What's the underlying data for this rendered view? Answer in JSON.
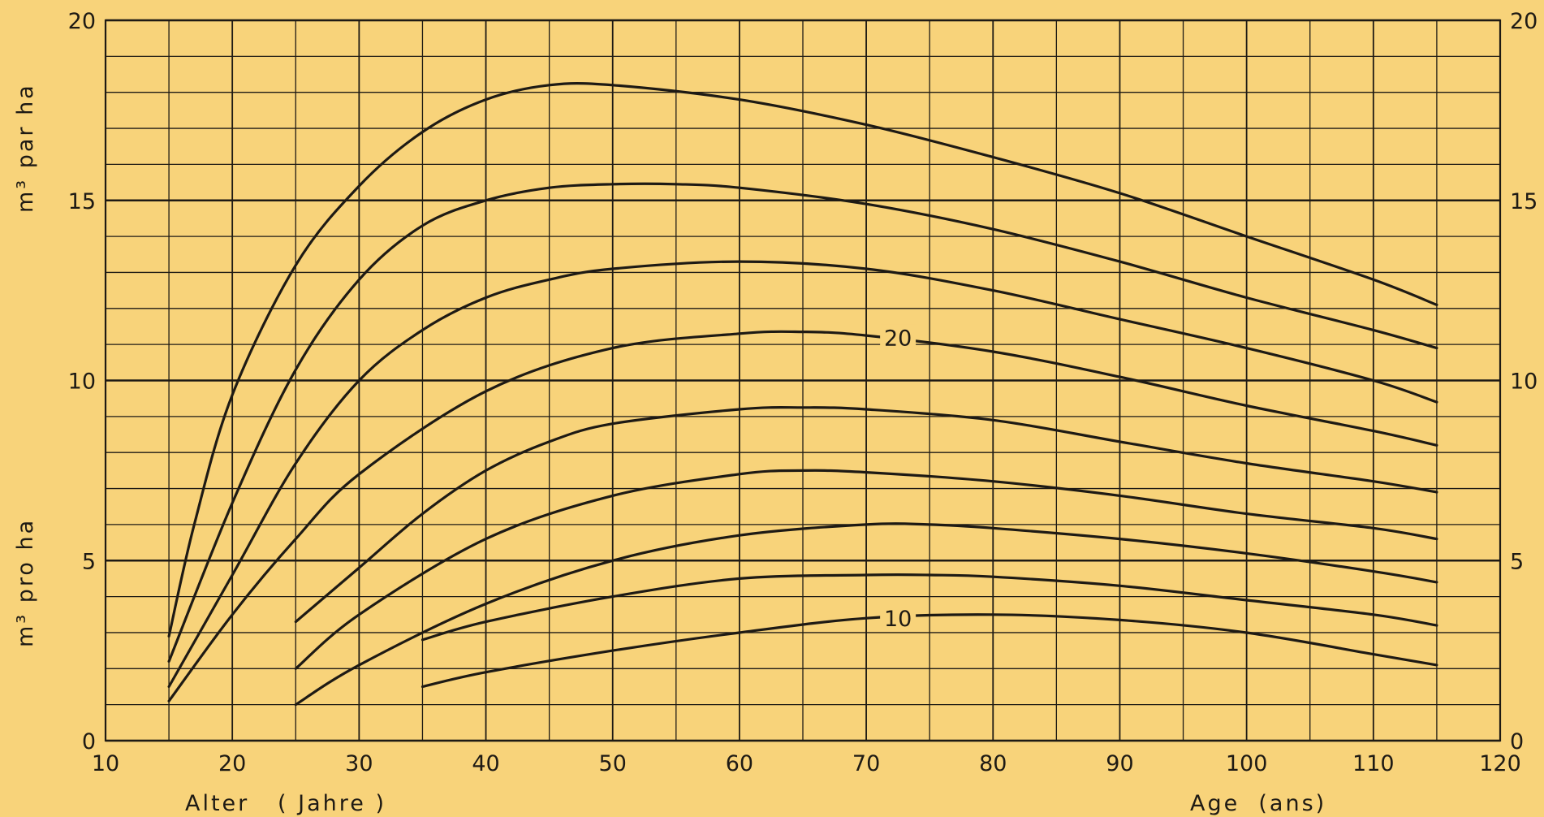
{
  "chart_data": {
    "type": "line",
    "title": "",
    "x_range": [
      10,
      120
    ],
    "y_range": [
      0,
      20
    ],
    "grid": true,
    "x_ticks": [
      10,
      20,
      30,
      40,
      50,
      60,
      70,
      80,
      90,
      100,
      110,
      120
    ],
    "y_ticks_left": [
      0,
      5,
      10,
      15,
      20
    ],
    "y_ticks_right": [
      0,
      5,
      10,
      15,
      20
    ],
    "xlabel_left": "Alter   ( Jahre )",
    "xlabel_right": "Age  (ans)",
    "ylabel_top": "m³ par ha",
    "ylabel_bottom": "m³ pro ha",
    "curve_labels": [
      {
        "text": "20",
        "x": 72.5,
        "y": 11.2
      },
      {
        "text": "10",
        "x": 72.5,
        "y": 3.4
      }
    ],
    "series": [
      {
        "x": [
          15,
          17,
          20,
          25,
          30,
          35,
          40,
          45,
          50,
          60,
          70,
          80,
          90,
          100,
          110,
          115
        ],
        "values": [
          2.9,
          6.0,
          9.6,
          13.2,
          15.4,
          16.9,
          17.8,
          18.2,
          18.2,
          17.8,
          17.1,
          16.2,
          15.2,
          14.0,
          12.8,
          12.1
        ]
      },
      {
        "x": [
          15,
          20,
          25,
          30,
          35,
          40,
          45,
          50,
          55,
          60,
          70,
          80,
          90,
          100,
          110,
          115
        ],
        "values": [
          2.2,
          6.6,
          10.3,
          12.8,
          14.3,
          15.0,
          15.35,
          15.45,
          15.45,
          15.35,
          14.9,
          14.2,
          13.3,
          12.3,
          11.4,
          10.9
        ]
      },
      {
        "x": [
          15,
          20,
          25,
          30,
          35,
          40,
          45,
          50,
          60,
          70,
          80,
          90,
          100,
          110,
          115
        ],
        "values": [
          1.5,
          4.6,
          7.7,
          10.0,
          11.4,
          12.3,
          12.8,
          13.1,
          13.3,
          13.1,
          12.5,
          11.7,
          10.9,
          10.0,
          9.4
        ]
      },
      {
        "x": [
          15,
          20,
          25,
          30,
          40,
          50,
          60,
          65,
          70,
          80,
          90,
          100,
          110,
          115
        ],
        "values": [
          1.1,
          3.5,
          5.6,
          7.4,
          9.7,
          10.9,
          11.3,
          11.35,
          11.25,
          10.8,
          10.1,
          9.3,
          8.6,
          8.2
        ]
      },
      {
        "x": [
          25,
          30,
          35,
          40,
          45,
          50,
          60,
          65,
          70,
          80,
          90,
          100,
          110,
          115
        ],
        "values": [
          3.3,
          4.8,
          6.3,
          7.5,
          8.3,
          8.8,
          9.2,
          9.25,
          9.2,
          8.9,
          8.3,
          7.7,
          7.2,
          6.9
        ]
      },
      {
        "x": [
          25,
          30,
          40,
          50,
          60,
          65,
          70,
          80,
          90,
          100,
          110,
          115
        ],
        "values": [
          2.0,
          3.5,
          5.6,
          6.8,
          7.4,
          7.5,
          7.45,
          7.2,
          6.8,
          6.3,
          5.9,
          5.6
        ]
      },
      {
        "x": [
          25,
          30,
          40,
          50,
          60,
          70,
          75,
          80,
          90,
          100,
          110,
          115
        ],
        "values": [
          1.0,
          2.1,
          3.8,
          5.0,
          5.7,
          6.0,
          6.0,
          5.9,
          5.6,
          5.2,
          4.7,
          4.4
        ]
      },
      {
        "x": [
          35,
          40,
          50,
          60,
          70,
          75,
          80,
          90,
          100,
          110,
          115
        ],
        "values": [
          2.8,
          3.3,
          4.0,
          4.5,
          4.6,
          4.6,
          4.55,
          4.3,
          3.9,
          3.5,
          3.2
        ]
      },
      {
        "x": [
          35,
          40,
          50,
          60,
          70,
          80,
          90,
          100,
          110,
          115
        ],
        "values": [
          1.5,
          1.9,
          2.5,
          3.0,
          3.4,
          3.5,
          3.35,
          3.0,
          2.4,
          2.1
        ]
      }
    ]
  },
  "colors": {
    "background": "#f8d37a",
    "ink": "#1e1a14"
  }
}
